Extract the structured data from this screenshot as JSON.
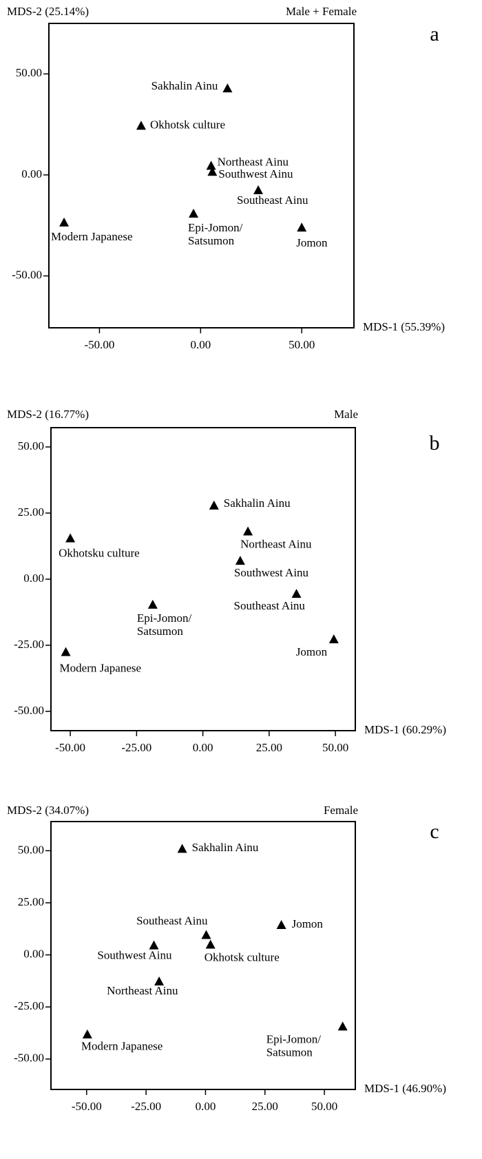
{
  "chart_data": [
    {
      "type": "scatter",
      "panel_letter": "a",
      "title": "Male + Female",
      "xlabel": "MDS-1 (55.39%)",
      "ylabel": "MDS-2 (25.14%)",
      "xlim": [
        -75,
        75.8
      ],
      "ylim": [
        -75.7,
        75
      ],
      "xticks": [
        -50,
        0,
        50
      ],
      "yticks": [
        50,
        0,
        -50
      ],
      "xtick_labels": [
        "-50.00",
        "0.00",
        "50.00"
      ],
      "ytick_labels": [
        "50.00",
        "0.00",
        "-50.00"
      ],
      "grid": false,
      "marker": "triangle",
      "color": "#000000",
      "points": [
        {
          "label": [
            "Sakhalin Ainu"
          ],
          "x": 13.3,
          "y": 42.9
        },
        {
          "label": [
            "Okhotsk culture"
          ],
          "x": -29.4,
          "y": 24.4
        },
        {
          "label": [
            "Northeast Ainu"
          ],
          "x": 5.2,
          "y": 4.6
        },
        {
          "label": [
            "Southwest Ainu"
          ],
          "x": 5.8,
          "y": 1.6
        },
        {
          "label": [
            "Southeast Ainu"
          ],
          "x": 28.5,
          "y": -7.5
        },
        {
          "label": [
            "Epi-Jomon/",
            "Satsumon"
          ],
          "x": -3.5,
          "y": -19.1
        },
        {
          "label": [
            "Modern Japanese"
          ],
          "x": -67.5,
          "y": -23.5
        },
        {
          "label": [
            "Jomon"
          ],
          "x": 50.0,
          "y": -26.0
        }
      ]
    },
    {
      "type": "scatter",
      "panel_letter": "b",
      "title": "Male",
      "xlabel": "MDS-1 (60.29%)",
      "ylabel": "MDS-2 (16.77%)",
      "xlim": [
        -57.3,
        57.5
      ],
      "ylim": [
        -57.3,
        57.3
      ],
      "xticks": [
        -50,
        -25,
        0,
        25,
        50
      ],
      "yticks": [
        50,
        25,
        0,
        -25,
        -50
      ],
      "xtick_labels": [
        "-50.00",
        "-25.00",
        "0.00",
        "25.00",
        "50.00"
      ],
      "ytick_labels": [
        "50.00",
        "25.00",
        "0.00",
        "-25.00",
        "-50.00"
      ],
      "grid": false,
      "marker": "triangle",
      "color": "#000000",
      "points": [
        {
          "label": [
            "Sakhalin Ainu"
          ],
          "x": 4.2,
          "y": 27.9
        },
        {
          "label": [
            "Northeast Ainu"
          ],
          "x": 17.0,
          "y": 18.1
        },
        {
          "label": [
            "Okhotsku culture"
          ],
          "x": -50.0,
          "y": 15.5
        },
        {
          "label": [
            "Southwest Ainu"
          ],
          "x": 14.1,
          "y": 7.0
        },
        {
          "label": [
            "Southeast Ainu"
          ],
          "x": 35.3,
          "y": -5.5
        },
        {
          "label": [
            "Epi-Jomon/",
            "Satsumon"
          ],
          "x": -18.9,
          "y": -9.6
        },
        {
          "label": [
            "Jomon"
          ],
          "x": 49.4,
          "y": -22.7
        },
        {
          "label": [
            "Modern Japanese"
          ],
          "x": -51.7,
          "y": -27.5
        }
      ]
    },
    {
      "type": "scatter",
      "panel_letter": "c",
      "title": "Female",
      "xlabel": "MDS-1 (46.90%)",
      "ylabel": "MDS-2 (34.07%)",
      "xlim": [
        -65,
        63
      ],
      "ylim": [
        -64.6,
        64
      ],
      "xticks": [
        -50,
        -25,
        0,
        25,
        50
      ],
      "yticks": [
        50,
        25,
        0,
        -25,
        -50
      ],
      "xtick_labels": [
        "-50.00",
        "-25.00",
        "0.00",
        "25.00",
        "50.00"
      ],
      "ytick_labels": [
        "50.00",
        "25.00",
        "0.00",
        "-25.00",
        "-50.00"
      ],
      "grid": false,
      "marker": "triangle",
      "color": "#000000",
      "points": [
        {
          "label": [
            "Sakhalin Ainu"
          ],
          "x": -9.8,
          "y": 51.0
        },
        {
          "label": [
            "Southeast Ainu"
          ],
          "x": 0.3,
          "y": 9.6
        },
        {
          "label": [
            "Okhotsk culture"
          ],
          "x": 2.1,
          "y": 5.0
        },
        {
          "label": [
            "Jomon"
          ],
          "x": 31.9,
          "y": 14.4
        },
        {
          "label": [
            "Southwest Ainu"
          ],
          "x": -21.7,
          "y": 4.6
        },
        {
          "label": [
            "Northeast Ainu"
          ],
          "x": -19.5,
          "y": -12.7
        },
        {
          "label": [
            "Modern Japanese"
          ],
          "x": -49.7,
          "y": -38.1
        },
        {
          "label": [
            "Epi-Jomon/",
            "Satsumon"
          ],
          "x": 57.7,
          "y": -34.3
        }
      ]
    }
  ]
}
